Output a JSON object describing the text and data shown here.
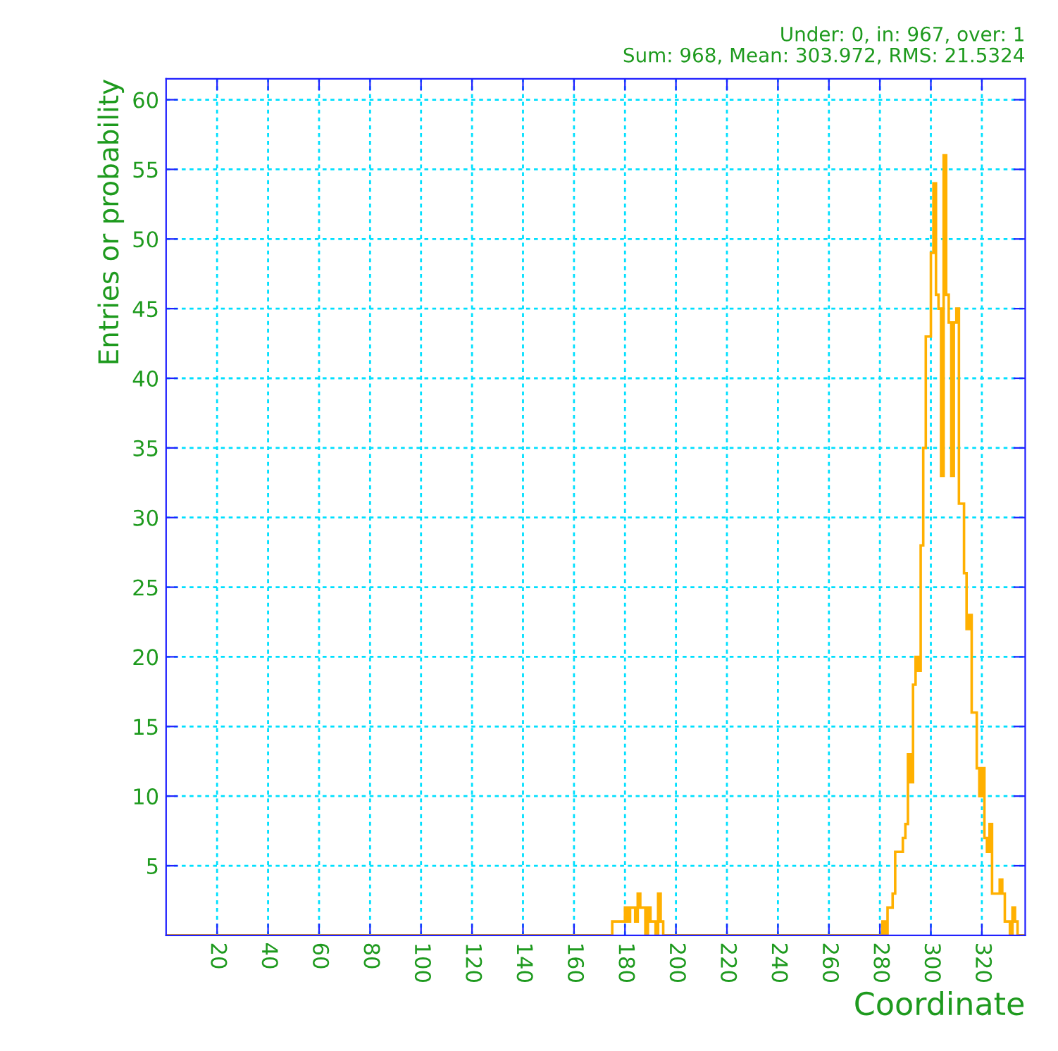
{
  "chart_data": {
    "type": "histogram",
    "xlabel": "Coordinate",
    "ylabel": "Entries or probability",
    "annotations": [
      "Under: 0, in: 967, over: 1",
      "Sum: 968, Mean: 303.972, RMS: 21.5324"
    ],
    "bins": [
      0,
      175,
      176,
      177,
      178,
      179,
      180,
      181,
      182,
      183,
      184,
      185,
      186,
      187,
      188,
      189,
      190,
      191,
      192,
      193,
      194,
      195,
      280,
      281,
      282,
      283,
      284,
      285,
      286,
      287,
      288,
      289,
      290,
      291,
      292,
      293,
      294,
      295,
      296,
      297,
      298,
      299,
      300,
      301,
      302,
      303,
      304,
      305,
      306,
      307,
      308,
      309,
      310,
      311,
      312,
      313,
      314,
      315,
      316,
      317,
      318,
      319,
      320,
      321,
      322,
      323,
      324,
      325,
      326,
      327,
      328,
      329,
      330,
      331,
      332,
      333,
      334,
      335,
      336,
      337
    ],
    "values": [
      0,
      1,
      1,
      1,
      1,
      1,
      2,
      1,
      2,
      2,
      1,
      3,
      2,
      2,
      0,
      2,
      1,
      1,
      0,
      3,
      1,
      0,
      0,
      1,
      0,
      2,
      2,
      3,
      6,
      6,
      6,
      7,
      8,
      13,
      11,
      18,
      20,
      19,
      28,
      35,
      43,
      43,
      49,
      54,
      46,
      45,
      33,
      56,
      46,
      44,
      33,
      44,
      45,
      31,
      31,
      26,
      22,
      23,
      16,
      16,
      12,
      10,
      12,
      7,
      6,
      8,
      3,
      3,
      3,
      4,
      3,
      1,
      1,
      0,
      2,
      1,
      0,
      0,
      0
    ],
    "color": "#ffb000",
    "xlim": [
      0,
      337
    ],
    "ylim": [
      0,
      61.5
    ],
    "xticks": [
      20,
      40,
      60,
      80,
      100,
      120,
      140,
      160,
      180,
      200,
      220,
      240,
      260,
      280,
      300,
      320
    ],
    "yticks": [
      5,
      10,
      15,
      20,
      25,
      30,
      35,
      40,
      45,
      50,
      55,
      60
    ],
    "grid": true,
    "legend": false
  }
}
